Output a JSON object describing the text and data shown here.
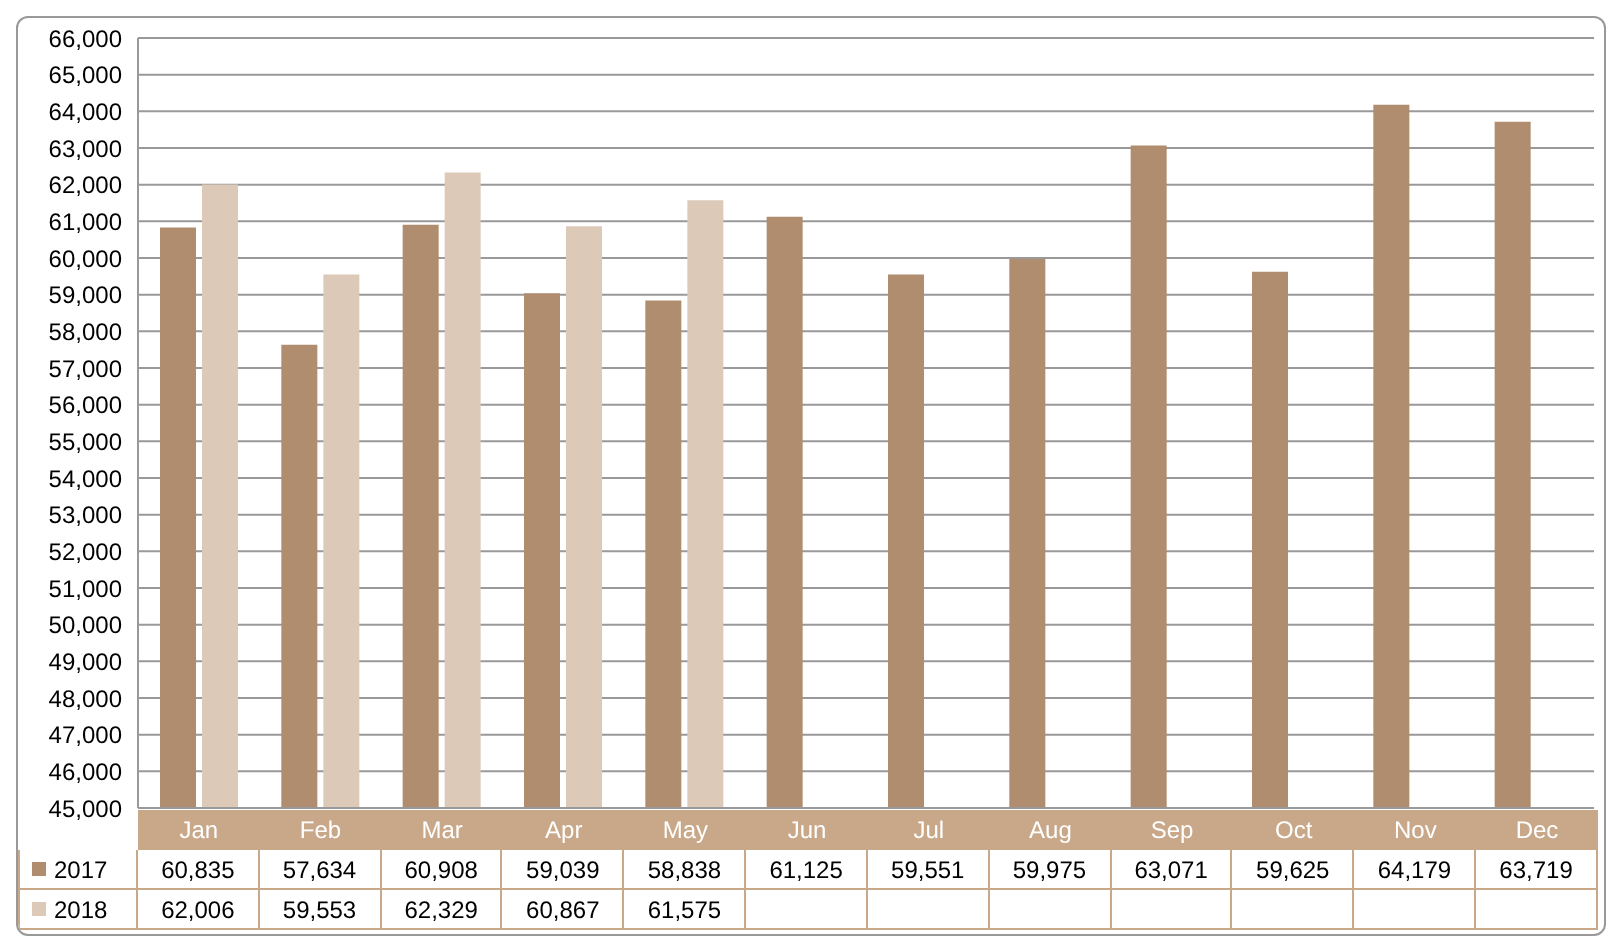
{
  "chart_data": {
    "type": "bar",
    "categories": [
      "Jan",
      "Feb",
      "Mar",
      "Apr",
      "May",
      "Jun",
      "Jul",
      "Aug",
      "Sep",
      "Oct",
      "Nov",
      "Dec"
    ],
    "series": [
      {
        "name": "2017",
        "color": "#b08d6e",
        "values": [
          60835,
          57634,
          60908,
          59039,
          58838,
          61125,
          59551,
          59975,
          63071,
          59625,
          64179,
          63719
        ],
        "value_labels": [
          "60,835",
          "57,634",
          "60,908",
          "59,039",
          "58,838",
          "61,125",
          "59,551",
          "59,975",
          "63,071",
          "59,625",
          "64,179",
          "63,719"
        ]
      },
      {
        "name": "2018",
        "color": "#ddc9b8",
        "values": [
          62006,
          59553,
          62329,
          60867,
          61575,
          null,
          null,
          null,
          null,
          null,
          null,
          null
        ],
        "value_labels": [
          "62,006",
          "59,553",
          "62,329",
          "60,867",
          "61,575",
          null,
          null,
          null,
          null,
          null,
          null,
          null
        ]
      }
    ],
    "ylim": [
      45000,
      66000
    ],
    "yticks": [
      {
        "value": 45000,
        "label": "45,000"
      },
      {
        "value": 46000,
        "label": "46,000"
      },
      {
        "value": 47000,
        "label": "47,000"
      },
      {
        "value": 48000,
        "label": "48,000"
      },
      {
        "value": 49000,
        "label": "49,000"
      },
      {
        "value": 50000,
        "label": "50,000"
      },
      {
        "value": 51000,
        "label": "51,000"
      },
      {
        "value": 52000,
        "label": "52,000"
      },
      {
        "value": 53000,
        "label": "53,000"
      },
      {
        "value": 54000,
        "label": "54,000"
      },
      {
        "value": 55000,
        "label": "55,000"
      },
      {
        "value": 56000,
        "label": "56,000"
      },
      {
        "value": 57000,
        "label": "57,000"
      },
      {
        "value": 58000,
        "label": "58,000"
      },
      {
        "value": 59000,
        "label": "59,000"
      },
      {
        "value": 60000,
        "label": "60,000"
      },
      {
        "value": 61000,
        "label": "61,000"
      },
      {
        "value": 62000,
        "label": "62,000"
      },
      {
        "value": 63000,
        "label": "63,000"
      },
      {
        "value": 64000,
        "label": "64,000"
      },
      {
        "value": 65000,
        "label": "65,000"
      },
      {
        "value": 66000,
        "label": "66,000"
      }
    ],
    "grid": "y",
    "legend": "bottom"
  }
}
